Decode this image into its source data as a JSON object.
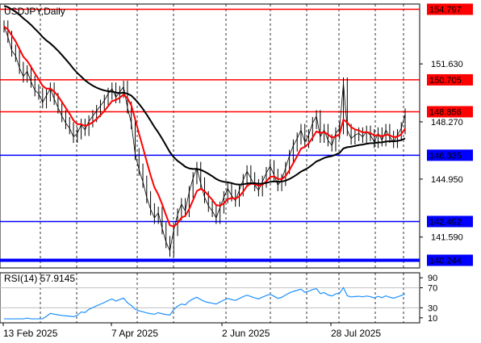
{
  "chart_data": [
    {
      "type": "line",
      "symbol": "USDJPY",
      "timeframe": "Daily",
      "title": "USDJPY,Daily",
      "ylim": [
        139.8,
        155.1
      ],
      "y_ticks": [
        154.797,
        151.63,
        150.705,
        148.856,
        148.27,
        146.335,
        144.95,
        142.492,
        141.59,
        140.244
      ],
      "x_labels": [
        "13 Feb 2025",
        "7 Apr 2025",
        "2 Jun 2025",
        "28 Jul 2025"
      ],
      "horizontal_levels": [
        {
          "value": 154.797,
          "label": "154.797",
          "color": "#ff0000"
        },
        {
          "value": 150.705,
          "label": "150.705",
          "color": "#ff0000"
        },
        {
          "value": 148.856,
          "label": "148.856",
          "color": "#ff0000"
        },
        {
          "value": 146.335,
          "label": "146.335",
          "color": "#0000ff"
        },
        {
          "value": 142.492,
          "label": "142.492",
          "color": "#0000ff"
        },
        {
          "value": 140.244,
          "label": "140.244",
          "color": "#0000ff"
        }
      ],
      "plain_ticks": [
        "151.630",
        "148.270",
        "144.950",
        "141.590"
      ],
      "series": [
        {
          "kind": "price",
          "color": "#000000",
          "values": [
            153.8,
            153.2,
            152.4,
            152.1,
            151.4,
            150.9,
            151.2,
            150.6,
            150.1,
            149.9,
            149.4,
            149.8,
            150.2,
            149.6,
            149.1,
            148.6,
            148.2,
            147.9,
            147.4,
            147.6,
            148.1,
            147.8,
            148.3,
            148.6,
            148.9,
            149.2,
            149.5,
            149.9,
            150.2,
            149.7,
            150.0,
            150.3,
            149.1,
            148.2,
            146.4,
            145.5,
            144.8,
            143.9,
            143.2,
            142.7,
            143.0,
            142.1,
            141.3,
            140.8,
            142.0,
            142.9,
            143.5,
            143.1,
            144.2,
            145.0,
            145.6,
            144.7,
            143.9,
            143.4,
            143.1,
            142.7,
            143.3,
            143.9,
            144.4,
            144.0,
            143.7,
            144.3,
            144.9,
            145.4,
            145.0,
            144.6,
            144.3,
            144.8,
            145.3,
            145.7,
            145.2,
            144.6,
            144.9,
            145.6,
            146.3,
            146.9,
            147.3,
            147.8,
            147.1,
            147.5,
            148.2,
            148.6,
            147.4,
            147.8,
            147.2,
            146.9,
            147.6,
            147.9,
            150.5,
            147.8,
            147.3,
            147.5,
            147.6,
            147.4,
            147.7,
            147.5,
            147.1,
            147.6,
            147.2,
            147.8,
            147.4,
            147.1,
            147.5,
            147.9,
            148.7
          ]
        },
        {
          "kind": "moving_average",
          "color": "#ff0000",
          "period": "short"
        },
        {
          "kind": "moving_average",
          "color": "#000000",
          "period": "long"
        }
      ]
    },
    {
      "type": "line",
      "indicator": "RSI(14)",
      "title": "RSI(14) 57.9145",
      "current_value": 57.9145,
      "ylim": [
        0,
        100
      ],
      "levels": [
        70,
        30
      ],
      "y_ticks": [
        90,
        70,
        30,
        10
      ],
      "series": [
        {
          "name": "RSI(14)",
          "color": "#1e90ff"
        }
      ]
    }
  ]
}
